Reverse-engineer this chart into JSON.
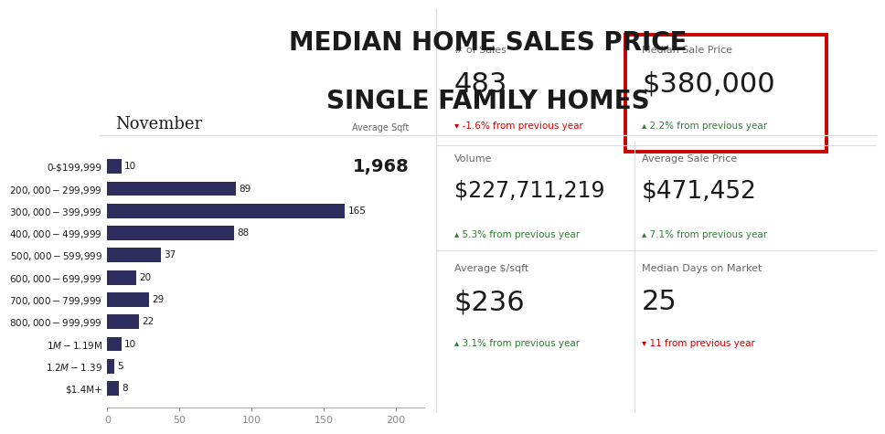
{
  "title_line1": "MEDIAN HOME SALES PRICE",
  "title_line2": "SINGLE FAMILY HOMES",
  "month": "November",
  "avg_sqft_label": "Average Sqft",
  "avg_sqft_value": "1,968",
  "bar_categories": [
    "0-$199,999",
    "$200,000-$299,999",
    "$300,000-$399,999",
    "$400,000-$499,999",
    "$500,000-$599,999",
    "$600,000-$699,999",
    "$700,000-$799,999",
    "$800,000-$999,999",
    "$1M-$1.19M",
    "$1.2M-$1.39",
    "$1.4M+"
  ],
  "bar_values": [
    10,
    89,
    165,
    88,
    37,
    20,
    29,
    22,
    10,
    5,
    8
  ],
  "bar_color": "#2d2d5e",
  "stats": [
    {
      "label": "# of Sales",
      "value": "483",
      "change": "▾ -1.6% from previous year",
      "change_color": "#cc0000",
      "col": 0,
      "row": 0,
      "highlight": false,
      "value_size": 22
    },
    {
      "label": "Median Sale Price",
      "value": "$380,000",
      "change": "▴ 2.2% from previous year",
      "change_color": "#2e7d32",
      "col": 1,
      "row": 0,
      "highlight": true,
      "value_size": 22
    },
    {
      "label": "Volume",
      "value": "$227,711,219",
      "change": "▴ 5.3% from previous year",
      "change_color": "#2e7d32",
      "col": 0,
      "row": 1,
      "highlight": false,
      "value_size": 17
    },
    {
      "label": "Average Sale Price",
      "value": "$471,452",
      "change": "▴ 7.1% from previous year",
      "change_color": "#2e7d32",
      "col": 1,
      "row": 1,
      "highlight": false,
      "value_size": 19
    },
    {
      "label": "Average $/sqft",
      "value": "$236",
      "change": "▴ 3.1% from previous year",
      "change_color": "#2e7d32",
      "col": 0,
      "row": 2,
      "highlight": false,
      "value_size": 22
    },
    {
      "label": "Median Days on Market",
      "value": "25",
      "change": "▾ 11 from previous year",
      "change_color": "#cc0000",
      "col": 1,
      "row": 2,
      "highlight": false,
      "value_size": 22
    }
  ],
  "background_color": "#ffffff",
  "text_color": "#1a1a1a",
  "gray_text": "#666666",
  "highlight_border_color": "#cc0000",
  "divider_color": "#dddddd"
}
